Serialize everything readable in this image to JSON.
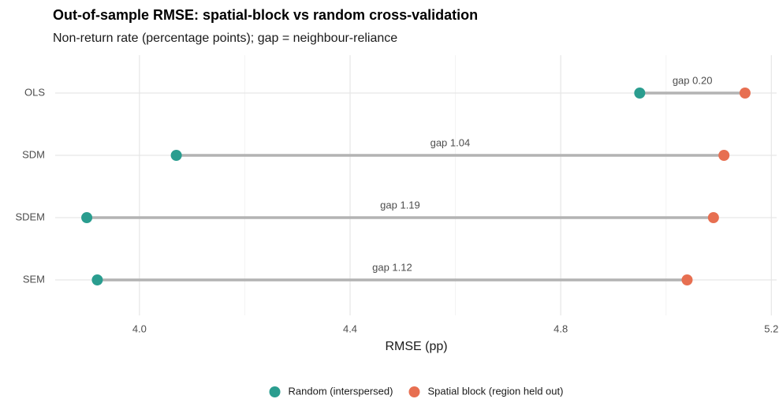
{
  "chart_data": {
    "type": "dumbbell",
    "title": "Out-of-sample RMSE: spatial-block vs random cross-validation",
    "subtitle": "Non-return rate (percentage points); gap = neighbour-reliance",
    "x_label": "RMSE (pp)",
    "categories": [
      "OLS",
      "SDM",
      "SDEM",
      "SEM"
    ],
    "series": [
      {
        "name": "Random (interspersed)",
        "color": "#2a9d8f",
        "values": [
          4.95,
          4.07,
          3.9,
          3.92
        ]
      },
      {
        "name": "Spatial block (region held out)",
        "color": "#e76f51",
        "values": [
          5.15,
          5.11,
          5.09,
          5.04
        ]
      }
    ],
    "annotations": [
      "gap 0.20",
      "gap 1.04",
      "gap 1.19",
      "gap 1.12"
    ],
    "xlim": [
      3.84,
      5.21
    ],
    "xticks": [
      {
        "value": 4.0,
        "label": "4.0"
      },
      4.4,
      4.8,
      5.2
    ],
    "minor_xticks": [
      4.2,
      4.6,
      5.0
    ],
    "grid": true,
    "legend": "bottom"
  }
}
